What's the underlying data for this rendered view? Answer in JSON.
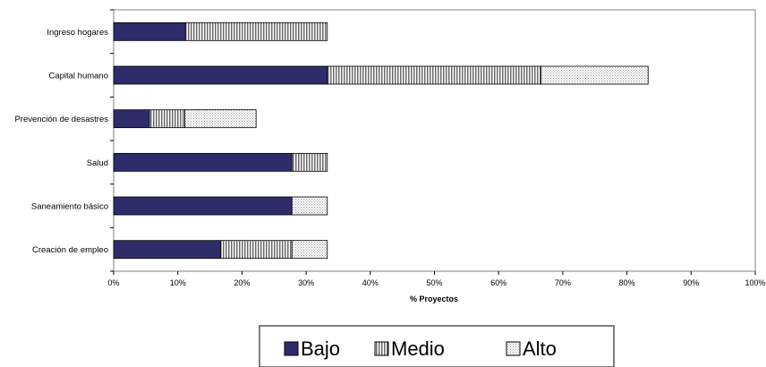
{
  "chart_data": {
    "type": "bar",
    "orientation": "horizontal",
    "stacked": true,
    "categories": [
      "Ingreso hogares",
      "Capital humano",
      "Prevención de desastres",
      "Salud",
      "Saneamiento básico",
      "Creación de empleo"
    ],
    "series": [
      {
        "name": "Bajo",
        "values": [
          11.2,
          33.3,
          5.6,
          27.8,
          27.8,
          16.7
        ]
      },
      {
        "name": "Medio",
        "values": [
          22.1,
          33.3,
          5.5,
          5.5,
          0,
          11.1
        ]
      },
      {
        "name": "Alto",
        "values": [
          0,
          16.7,
          11.1,
          0,
          5.5,
          5.5
        ]
      }
    ],
    "xlabel": "% Proyectos",
    "xlim": [
      0,
      100
    ],
    "x_ticks": [
      "0%",
      "10%",
      "20%",
      "30%",
      "40%",
      "50%",
      "60%",
      "70%",
      "80%",
      "90%",
      "100%"
    ],
    "grid": false,
    "legend_position": "bottom",
    "colors": {
      "Bajo": "#2e2c6b",
      "Medio": "#a8a8a8",
      "Alto": "#e2e2e2"
    }
  }
}
